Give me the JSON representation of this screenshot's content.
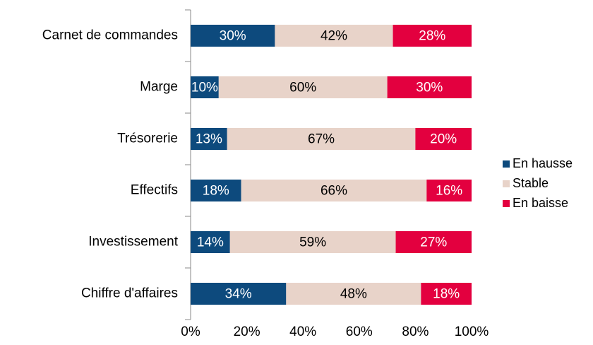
{
  "chart_data": {
    "type": "stacked-barh",
    "categories": [
      "Carnet de commandes",
      "Marge",
      "Trésorerie",
      "Effectifs",
      "Investissement",
      "Chiffre d'affaires"
    ],
    "series": [
      {
        "name": "En hausse",
        "color": "#0d4a7d",
        "values": [
          30,
          10,
          13,
          18,
          14,
          34
        ],
        "value_labels": [
          "30%",
          "10%",
          "13%",
          "18%",
          "14%",
          "34%"
        ]
      },
      {
        "name": "Stable",
        "color": "#e8d3c9",
        "values": [
          42,
          60,
          67,
          66,
          59,
          48
        ],
        "value_labels": [
          "42%",
          "60%",
          "67%",
          "66%",
          "59%",
          "48%"
        ]
      },
      {
        "name": "En baisse",
        "color": "#e3003f",
        "values": [
          28,
          30,
          20,
          16,
          27,
          18
        ],
        "value_labels": [
          "28%",
          "30%",
          "20%",
          "16%",
          "27%",
          "18%"
        ]
      }
    ],
    "xlim": [
      0,
      100
    ],
    "xticks": [
      {
        "value": 0,
        "label": "0%"
      },
      {
        "value": 20,
        "label": "20%"
      },
      {
        "value": 40,
        "label": "40%"
      },
      {
        "value": 60,
        "label": "60%"
      },
      {
        "value": 80,
        "label": "80%"
      },
      {
        "value": 100,
        "label": "100%"
      }
    ],
    "legend": "right"
  }
}
